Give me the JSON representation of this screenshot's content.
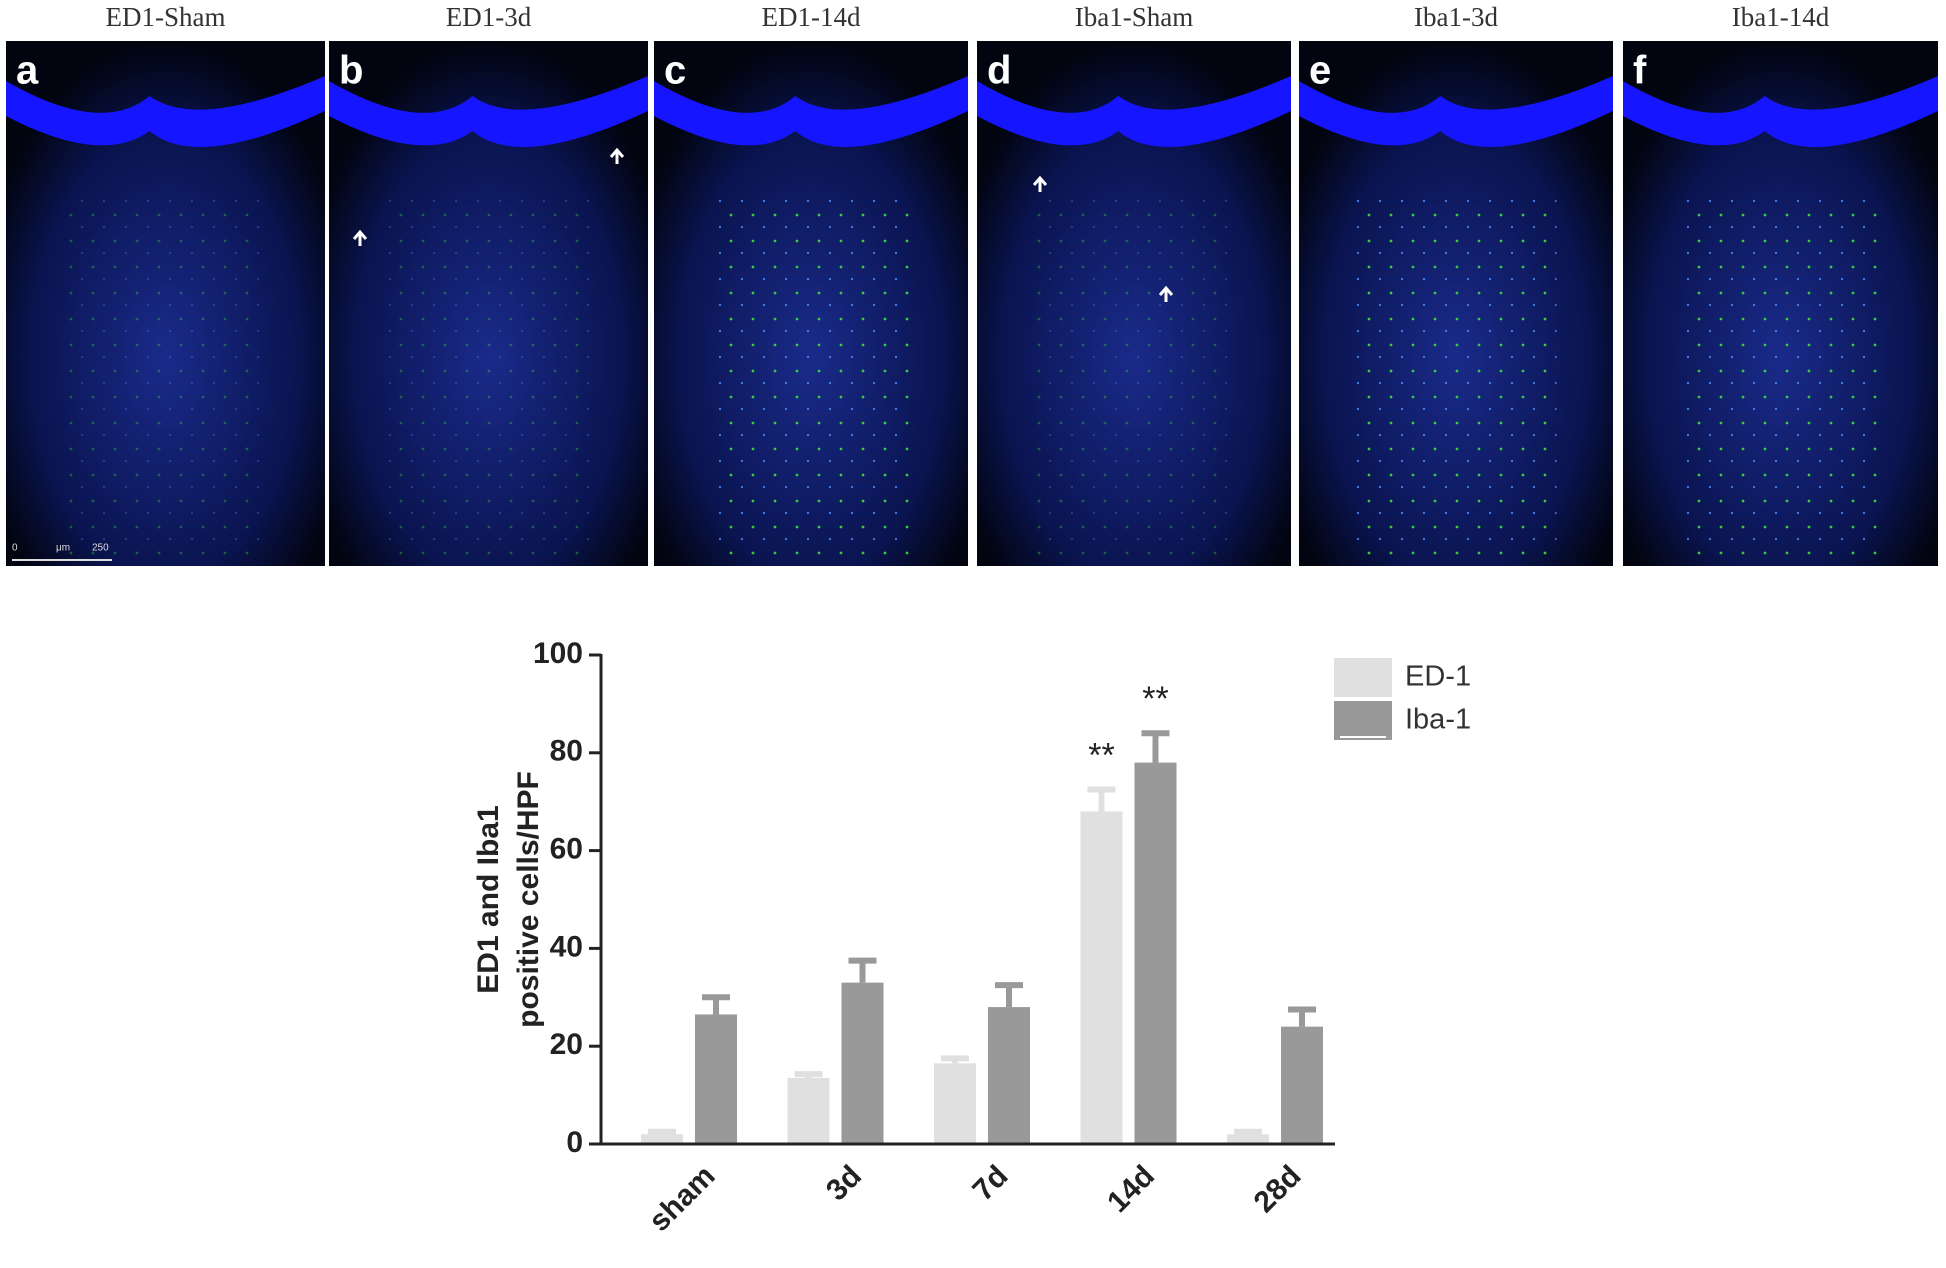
{
  "panels": [
    {
      "title": "ED1-Sham",
      "letter": "a"
    },
    {
      "title": "ED1-3d",
      "letter": "b"
    },
    {
      "title": "ED1-14d",
      "letter": "c"
    },
    {
      "title": "Iba1-Sham",
      "letter": "d"
    },
    {
      "title": "Iba1-3d",
      "letter": "e"
    },
    {
      "title": "Iba1-14d",
      "letter": "f"
    }
  ],
  "scale_bar": {
    "start": "0",
    "unit": "μm",
    "end": "250"
  },
  "chart_data": {
    "type": "bar",
    "ylabel": [
      "ED1 and Iba1",
      "positive cells/HPF"
    ],
    "categories": [
      "sham",
      "3d",
      "7d",
      "14d",
      "28d"
    ],
    "series": [
      {
        "name": "ED-1",
        "color": "#e0e0e0",
        "values": [
          2,
          13.5,
          16.5,
          68,
          2
        ],
        "errors": [
          0.5,
          0.8,
          1,
          4.5,
          0.5
        ],
        "annotations": [
          null,
          null,
          null,
          "**",
          null
        ]
      },
      {
        "name": "Iba-1",
        "color": "#999999",
        "values": [
          26.5,
          33,
          28,
          78,
          24
        ],
        "errors": [
          3.5,
          4.5,
          4.5,
          6,
          3.5
        ],
        "annotations": [
          null,
          null,
          null,
          "**",
          null
        ]
      }
    ],
    "ylim": [
      0,
      100
    ],
    "yticks": [
      0,
      20,
      40,
      60,
      80,
      100
    ]
  }
}
